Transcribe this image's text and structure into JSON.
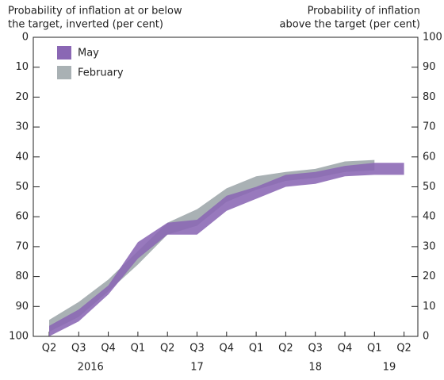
{
  "chart_data": {
    "type": "band",
    "y_title": [
      "Probability of inflation at or below",
      "the target, inverted (per cent)"
    ],
    "y2_title": [
      "Probability of inflation",
      "above the target (per cent)"
    ],
    "categories": [
      "Q2",
      "Q3",
      "Q4",
      "Q1",
      "Q2",
      "Q3",
      "Q4",
      "Q1",
      "Q2",
      "Q3",
      "Q4",
      "Q1",
      "Q2"
    ],
    "year_labels": [
      "2016",
      "17",
      "18",
      "19"
    ],
    "ylim": [
      0,
      100
    ],
    "y_inverted": true,
    "yticks": [
      0,
      10,
      20,
      30,
      40,
      50,
      60,
      70,
      80,
      90,
      100
    ],
    "y2lim": [
      0,
      100
    ],
    "y2ticks": [
      0,
      10,
      20,
      30,
      40,
      50,
      60,
      70,
      80,
      90,
      100
    ],
    "legend_position": "upper-left",
    "series": [
      {
        "name": "February",
        "color": "#a9b1b4",
        "low": [
          94.5,
          88.5,
          81,
          71.5,
          62,
          57.5,
          50.5,
          46.5,
          45,
          44,
          41.5,
          41,
          null
        ],
        "high": [
          98.5,
          93.5,
          85,
          76,
          66,
          63,
          55,
          51,
          48,
          47,
          45,
          44.5,
          null
        ]
      },
      {
        "name": "May",
        "color": "#8a67b4",
        "low": [
          96.5,
          91,
          83,
          68.5,
          62,
          61,
          53,
          50,
          46,
          45,
          43,
          42,
          42
        ],
        "high": [
          100,
          95,
          86,
          74,
          66,
          66,
          58,
          54,
          50,
          49,
          46.5,
          46,
          46
        ]
      }
    ]
  }
}
